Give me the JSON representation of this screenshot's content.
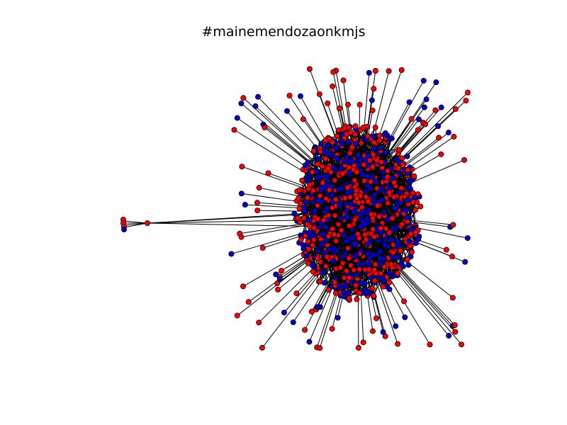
{
  "title": "#mainemendozaonkmjs",
  "colors": {
    "background": "#ffffff",
    "node_red": "#ff0000",
    "node_blue": "#0000cc",
    "node_stroke": "#000000",
    "edge": "#000000"
  }
}
